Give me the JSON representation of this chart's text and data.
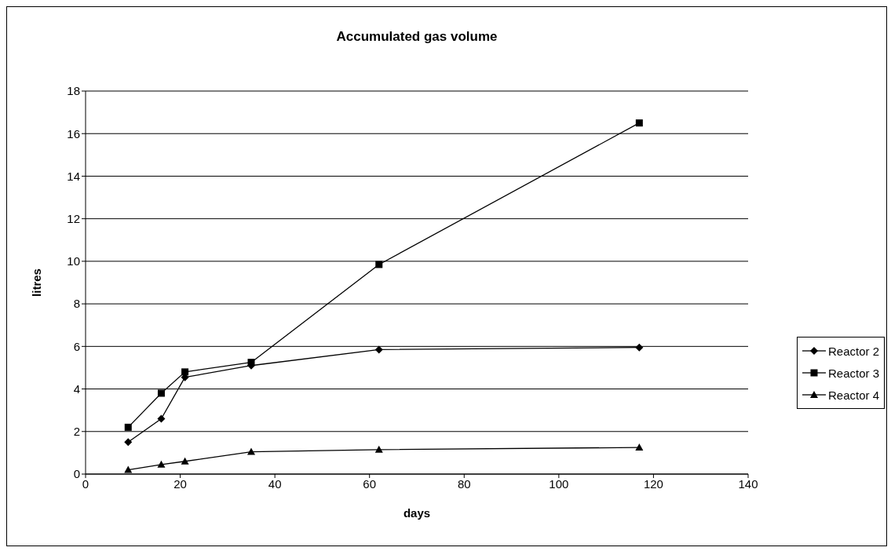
{
  "chart_data": {
    "type": "line",
    "title": "Accumulated gas volume",
    "xlabel": "days",
    "ylabel": "litres",
    "x": [
      9,
      16,
      21,
      35,
      62,
      117
    ],
    "series": [
      {
        "name": "Reactor 2",
        "color": "#000000",
        "marker": "diamond",
        "values": [
          1.5,
          2.6,
          4.55,
          5.1,
          5.85,
          5.95
        ]
      },
      {
        "name": "Reactor 3",
        "color": "#000000",
        "marker": "square",
        "values": [
          2.2,
          3.8,
          4.8,
          5.25,
          9.85,
          16.5
        ]
      },
      {
        "name": "Reactor 4",
        "color": "#000000",
        "marker": "triangle",
        "values": [
          0.2,
          0.45,
          0.6,
          1.05,
          1.15,
          1.25
        ]
      }
    ],
    "xlim": [
      0,
      140
    ],
    "xticks": [
      0,
      20,
      40,
      60,
      80,
      100,
      120,
      140
    ],
    "ylim": [
      0,
      18
    ],
    "yticks": [
      0,
      2,
      4,
      6,
      8,
      10,
      12,
      14,
      16,
      18
    ],
    "grid": "y",
    "legend": "right",
    "line_style": "solid"
  }
}
